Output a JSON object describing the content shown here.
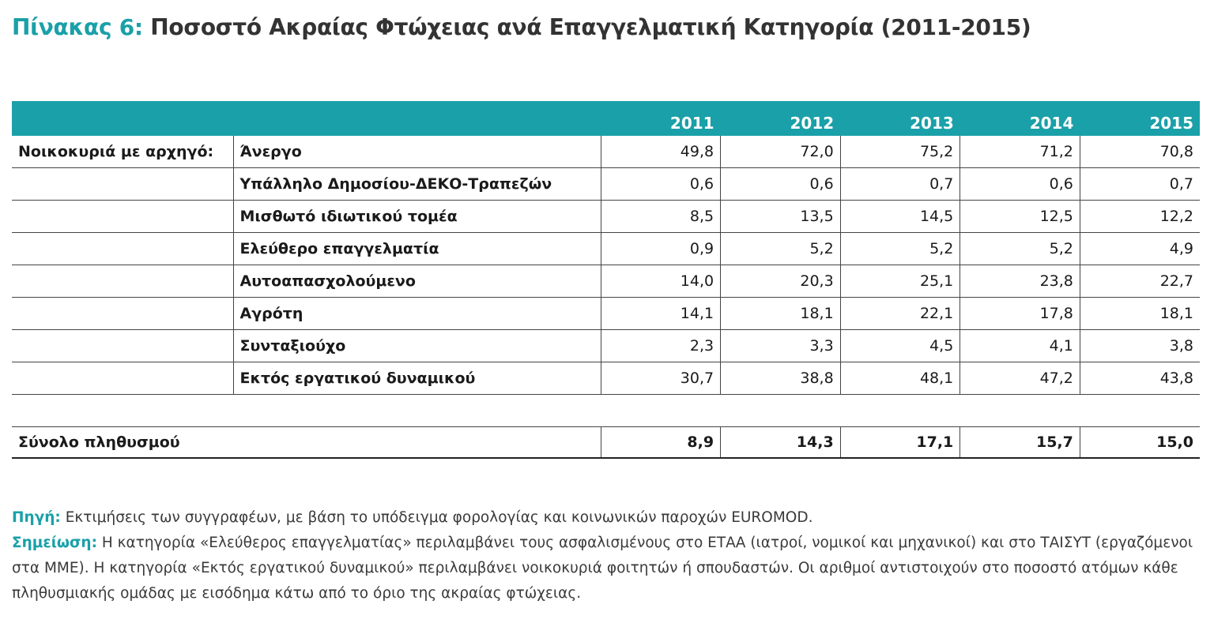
{
  "title": {
    "label": "Πίνακας 6:",
    "text": "Ποσοστό Ακραίας Φτώχειας ανά Επαγγελματική Κατηγορία (2011-2015)"
  },
  "table": {
    "years": [
      "2011",
      "2012",
      "2013",
      "2014",
      "2015"
    ],
    "group_label": "Νοικοκυριά με αρχηγό:",
    "rows": [
      {
        "label": "Άνεργο",
        "values": [
          "49,8",
          "72,0",
          "75,2",
          "71,2",
          "70,8"
        ]
      },
      {
        "label": "Υπάλληλο Δημοσίου-ΔΕΚΟ-Τραπεζών",
        "values": [
          "0,6",
          "0,6",
          "0,7",
          "0,6",
          "0,7"
        ]
      },
      {
        "label": "Μισθωτό ιδιωτικού τομέα",
        "values": [
          "8,5",
          "13,5",
          "14,5",
          "12,5",
          "12,2"
        ]
      },
      {
        "label": "Ελεύθερο επαγγελματία",
        "values": [
          "0,9",
          "5,2",
          "5,2",
          "5,2",
          "4,9"
        ]
      },
      {
        "label": "Αυτοαπασχολούμενο",
        "values": [
          "14,0",
          "20,3",
          "25,1",
          "23,8",
          "22,7"
        ]
      },
      {
        "label": "Αγρότη",
        "values": [
          "14,1",
          "18,1",
          "22,1",
          "17,8",
          "18,1"
        ]
      },
      {
        "label": "Συνταξιούχο",
        "values": [
          "2,3",
          "3,3",
          "4,5",
          "4,1",
          "3,8"
        ]
      },
      {
        "label": "Εκτός εργατικού δυναμικού",
        "values": [
          "30,7",
          "38,8",
          "48,1",
          "47,2",
          "43,8"
        ]
      }
    ],
    "total": {
      "label": "Σύνολο πληθυσμού",
      "values": [
        "8,9",
        "14,3",
        "17,1",
        "15,7",
        "15,0"
      ]
    }
  },
  "notes": {
    "source_label": "Πηγή:",
    "source_text": " Εκτιμήσεις των συγγραφέων, με βάση το υπόδειγμα φορολογίας και κοινωνικών παροχών EUROMOD.",
    "note_label": "Σημείωση:",
    "note_text": " Η κατηγορία «Ελεύθερος επαγγελματίας» περιλαμβάνει τους ασφαλισμένους στο ΕΤΑΑ (ιατροί, νομικοί και μηχανικοί) και στο ΤΑΙΣΥΤ (εργαζόμενοι στα ΜΜΕ). Η κατηγορία «Εκτός εργατικού δυναμικού» περιλαμβάνει νοικοκυριά φοιτητών ή σπουδαστών. Οι αριθμοί αντιστοιχούν στο ποσοστό ατόμων κάθε πληθυσμιακής ομάδας με εισόδημα κάτω από το όριο της ακραίας φτώχειας."
  }
}
